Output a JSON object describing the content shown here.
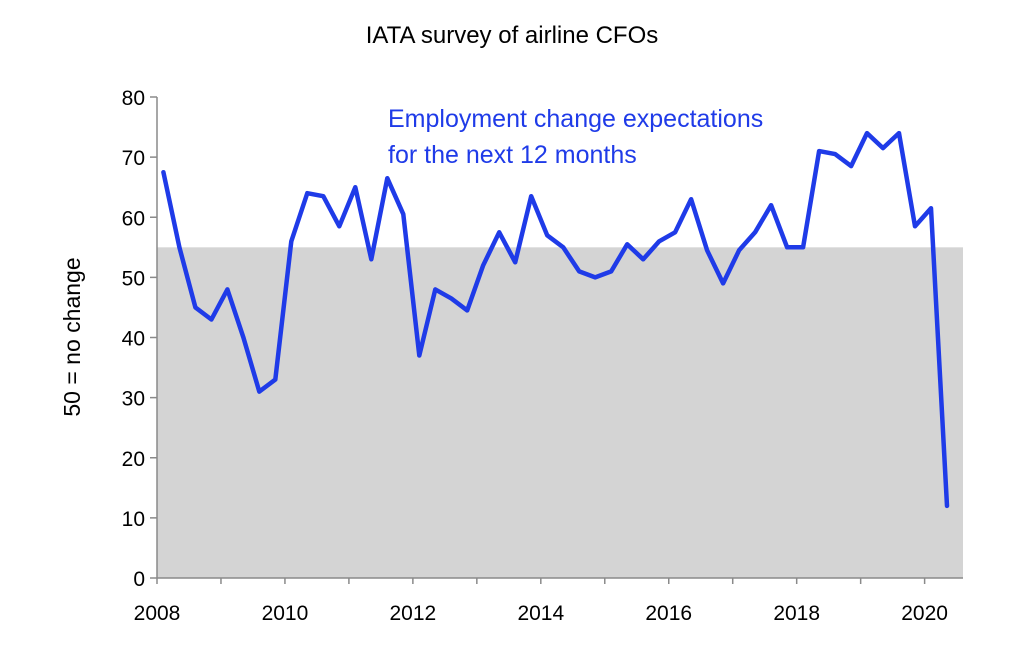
{
  "chart_data": {
    "type": "line",
    "title": "IATA survey of airline CFOs",
    "xlabel": "",
    "ylabel": "50 = no change",
    "xlim": [
      2008,
      2020.6
    ],
    "ylim": [
      0,
      80
    ],
    "yticks": [
      0,
      10,
      20,
      30,
      40,
      50,
      60,
      70,
      80
    ],
    "xticks": [
      2008,
      2010,
      2012,
      2014,
      2016,
      2018,
      2020
    ],
    "xtick_labels": [
      "2008",
      "2010",
      "2012",
      "2014",
      "2016",
      "2018",
      "2020"
    ],
    "grid": false,
    "shaded_band": {
      "from": 0,
      "to": 55,
      "color": "#d4d4d4"
    },
    "annotation": [
      "Employment change expectations",
      "for the next 12 months"
    ],
    "series_color": "#1f3be8",
    "series": [
      {
        "x": [
          2008.1,
          2008.35,
          2008.6,
          2008.85,
          2009.1,
          2009.35,
          2009.6,
          2009.85,
          2010.1,
          2010.35,
          2010.6,
          2010.85,
          2011.1,
          2011.35,
          2011.6,
          2011.85,
          2012.1,
          2012.35,
          2012.6,
          2012.85,
          2013.1,
          2013.35,
          2013.6,
          2013.85,
          2014.1,
          2014.35,
          2014.6,
          2014.85,
          2015.1,
          2015.35,
          2015.6,
          2015.85,
          2016.1,
          2016.35,
          2016.6,
          2016.85,
          2017.1,
          2017.35,
          2017.6,
          2017.85,
          2018.1,
          2018.35,
          2018.6,
          2018.85,
          2019.1,
          2019.35,
          2019.6,
          2019.85,
          2020.1,
          2020.35
        ],
        "values": [
          67.5,
          55,
          45,
          43,
          48,
          40,
          31,
          33,
          56,
          64,
          63.5,
          58.5,
          65,
          53,
          66.5,
          60.5,
          37,
          48,
          46.5,
          44.5,
          52,
          57.5,
          52.5,
          63.5,
          57,
          55,
          51,
          50,
          51,
          55.5,
          53,
          56,
          57.5,
          63,
          54.5,
          49,
          54.5,
          57.5,
          62,
          55,
          55,
          71,
          70.5,
          68.5,
          74,
          71.5,
          74,
          58.5,
          61.5,
          12
        ]
      }
    ]
  }
}
